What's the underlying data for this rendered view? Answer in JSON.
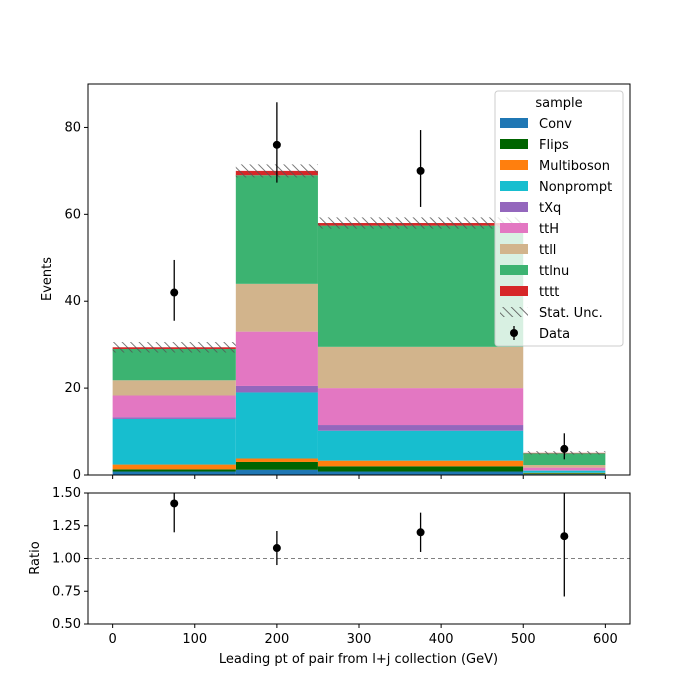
{
  "chart_data": {
    "type": "bar",
    "stacked": true,
    "bin_edges": [
      0,
      150,
      250,
      500,
      600
    ],
    "xlabel": "Leading pt of pair from l+j collection (GeV)",
    "xlim": [
      -30,
      630
    ],
    "xticks": [
      0,
      100,
      200,
      300,
      400,
      500,
      600
    ],
    "main": {
      "ylabel": "Events",
      "ylim": [
        0,
        90
      ],
      "yticks": [
        0,
        20,
        40,
        60,
        80
      ],
      "series": [
        {
          "name": "Conv",
          "color": "#1f77b4",
          "values": [
            0.8,
            1.2,
            0.8,
            0.2
          ]
        },
        {
          "name": "Flips",
          "color": "#006400",
          "values": [
            0.5,
            1.8,
            1.2,
            0.2
          ]
        },
        {
          "name": "Multiboson",
          "color": "#ff7f0e",
          "values": [
            1.1,
            0.8,
            1.3,
            0.1
          ]
        },
        {
          "name": "Nonprompt",
          "color": "#17becf",
          "values": [
            10.5,
            15.2,
            6.9,
            0.5
          ]
        },
        {
          "name": "tXq",
          "color": "#9467bd",
          "values": [
            0.4,
            1.5,
            1.3,
            0.1
          ]
        },
        {
          "name": "ttH",
          "color": "#e377c2",
          "values": [
            5.0,
            12.5,
            8.5,
            0.6
          ]
        },
        {
          "name": "ttll",
          "color": "#d2b48c",
          "values": [
            3.5,
            11.0,
            9.5,
            0.6
          ]
        },
        {
          "name": "ttlnu",
          "color": "#3cb371",
          "values": [
            7.2,
            25.0,
            27.9,
            2.7
          ]
        },
        {
          "name": "tttt",
          "color": "#d62728",
          "values": [
            0.4,
            1.0,
            0.6,
            0.1
          ]
        }
      ],
      "stat_unc": {
        "name": "Stat. Unc.",
        "totals": [
          29.4,
          70.0,
          58.0,
          5.1
        ],
        "errors": [
          1.2,
          1.5,
          1.3,
          0.4
        ]
      },
      "data": {
        "name": "Data",
        "x": [
          75,
          200,
          375,
          550
        ],
        "y": [
          42,
          76,
          70,
          6
        ],
        "yerr_low": [
          6.5,
          8.7,
          8.3,
          2.4
        ],
        "yerr_high": [
          7.5,
          9.8,
          9.4,
          3.6
        ]
      },
      "legend": {
        "title": "sample",
        "placement": "top-right"
      }
    },
    "ratio": {
      "ylabel": "Ratio",
      "ylim": [
        0.5,
        1.5
      ],
      "yticks": [
        0.5,
        0.75,
        1.0,
        1.25,
        1.5
      ],
      "ytick_labels": [
        "0.50",
        "0.75",
        "1.00",
        "1.25",
        "1.50"
      ],
      "reference": 1.0,
      "points": {
        "x": [
          75,
          200,
          375,
          550
        ],
        "y": [
          1.42,
          1.08,
          1.2,
          1.17
        ],
        "yerr": [
          0.22,
          0.13,
          0.15,
          0.46
        ]
      }
    }
  }
}
